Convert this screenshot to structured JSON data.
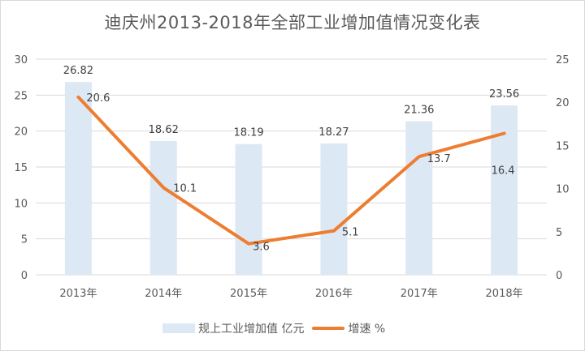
{
  "chart_data": {
    "type": "bar+line",
    "title": "迪庆州2013-2018年全部工业增加值情况变化表",
    "categories": [
      "2013年",
      "2014年",
      "2015年",
      "2016年",
      "2017年",
      "2018年"
    ],
    "series": [
      {
        "name": "规上工业增加值 亿元",
        "type": "bar",
        "axis": "left",
        "color": "#dde8f5",
        "values": [
          26.82,
          18.62,
          18.19,
          18.27,
          21.36,
          23.56
        ]
      },
      {
        "name": "增速 %",
        "type": "line",
        "axis": "right",
        "color": "#ed7d31",
        "values": [
          20.6,
          10.1,
          3.6,
          5.1,
          13.7,
          16.4
        ]
      }
    ],
    "left_axis": {
      "min": 0,
      "max": 30,
      "ticks": [
        0,
        5,
        10,
        15,
        20,
        25,
        30
      ]
    },
    "right_axis": {
      "min": 0,
      "max": 25,
      "ticks": [
        0,
        5,
        10,
        15,
        20,
        25
      ]
    },
    "xlabel": "",
    "ylabel": "",
    "grid": true,
    "legend_position": "bottom"
  }
}
